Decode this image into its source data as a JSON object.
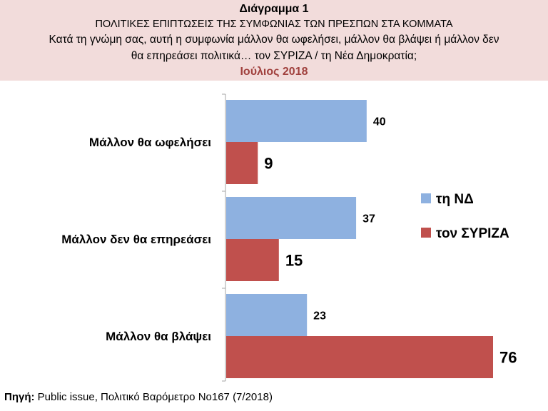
{
  "header": {
    "title": "Διάγραμμα 1",
    "subtitle": "ΠΟΛΙΤΙΚΕΣ ΕΠΙΠΤΩΣΕΙΣ ΤΗΣ ΣΥΜΦΩΝΙΑΣ ΤΩΝ ΠΡΕΣΠΩΝ ΣΤΑ ΚΟΜΜΑΤΑ",
    "question_line1": "Κατά τη γνώμη σας, αυτή η συμφωνία μάλλον θα ωφελήσει, μάλλον θα βλάψει ή μάλλον δεν",
    "question_line2": "θα επηρεάσει πολιτικά… τον ΣΥΡΙΖΑ / τη  Νέα Δημοκρατία;",
    "date": "Ιούλιος 2018"
  },
  "chart_data": {
    "type": "bar",
    "orientation": "horizontal",
    "title": "ΠΟΛΙΤΙΚΕΣ ΕΠΙΠΤΩΣΕΙΣ ΤΗΣ ΣΥΜΦΩΝΙΑΣ ΤΩΝ ΠΡΕΣΠΩΝ ΣΤΑ ΚΟΜΜΑΤΑ",
    "categories": [
      "Μάλλον θα ωφελήσει",
      "Μάλλον δεν θα επηρεάσει",
      "Μάλλον θα βλάψει"
    ],
    "series": [
      {
        "name": "τη ΝΔ",
        "color": "#8eb1e0",
        "values": [
          40,
          37,
          23
        ]
      },
      {
        "name": "τον ΣΥΡΙΖΑ",
        "color": "#c0504d",
        "values": [
          9,
          15,
          76
        ]
      }
    ],
    "xlim": [
      0,
      80
    ],
    "xlabel": "",
    "ylabel": "",
    "grid": false,
    "legend_position": "right",
    "data_labels": true
  },
  "footer": {
    "source_label": "Πηγή:",
    "source_text": " Public issue, Πολιτικό Βαρόμετρο Νο167 (7/2018)"
  }
}
